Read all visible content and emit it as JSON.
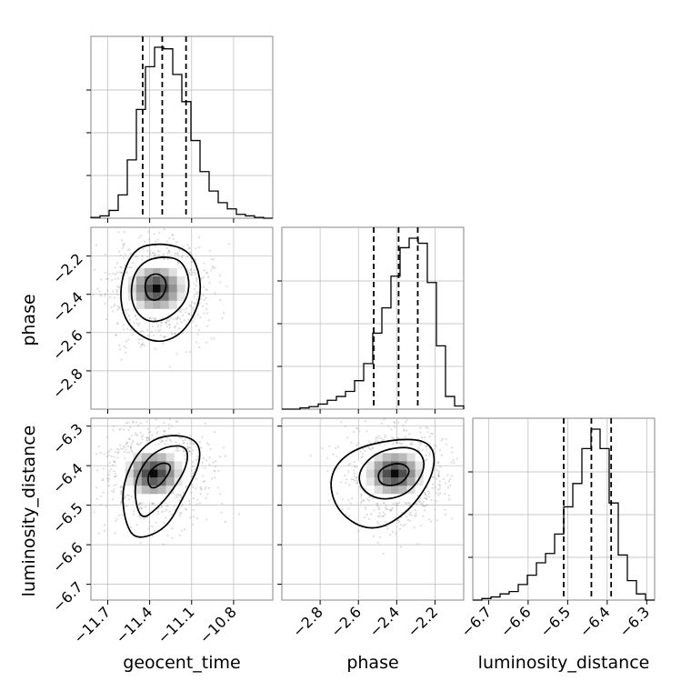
{
  "chart_data": {
    "type": "corner",
    "parameters": [
      "geocent_time",
      "phase",
      "luminosity_distance"
    ],
    "axes": {
      "geocent_time": {
        "xlabel": "geocent_time",
        "range": [
          -11.82,
          -10.52
        ],
        "ticks": [
          -11.7,
          -11.4,
          -11.1,
          -10.8
        ],
        "tick_labels": [
          "−11.7",
          "−11.4",
          "−11.1",
          "−10.8"
        ],
        "quantiles": [
          -11.45,
          -11.31,
          -11.14
        ],
        "hist_edges_start": -11.82,
        "hist_bin_width": 0.065,
        "hist_counts": [
          1,
          3,
          10,
          30,
          75,
          140,
          195,
          220,
          218,
          185,
          150,
          100,
          60,
          35,
          20,
          12,
          5,
          3,
          1,
          0
        ]
      },
      "phase": {
        "ylabel": "phase",
        "xlabel": "phase",
        "range": [
          -3.0,
          -2.05
        ],
        "ticks": [
          -2.8,
          -2.6,
          -2.4,
          -2.2
        ],
        "tick_labels": [
          "−2.8",
          "−2.6",
          "−2.4",
          "−2.2"
        ],
        "quantiles": [
          -2.52,
          -2.39,
          -2.29
        ],
        "hist_edges_start": -3.0,
        "hist_bin_width": 0.0475,
        "hist_counts": [
          0,
          0,
          2,
          4,
          8,
          14,
          20,
          28,
          45,
          72,
          120,
          160,
          210,
          255,
          270,
          262,
          200,
          100,
          20,
          5
        ]
      },
      "luminosity_distance": {
        "ylabel": "luminosity_distance",
        "xlabel": "luminosity_distance",
        "range": [
          -6.74,
          -6.28
        ],
        "ticks": [
          -6.7,
          -6.6,
          -6.5,
          -6.4,
          -6.3
        ],
        "tick_labels": [
          "−6.7",
          "−6.6",
          "−6.5",
          "−6.4",
          "−6.3"
        ],
        "quantiles": [
          -6.51,
          -6.44,
          -6.39
        ],
        "hist_edges_start": -6.74,
        "hist_bin_width": 0.023,
        "hist_counts": [
          0,
          2,
          4,
          8,
          11,
          20,
          32,
          48,
          60,
          85,
          120,
          150,
          195,
          220,
          195,
          125,
          58,
          25,
          8,
          0
        ]
      }
    },
    "pairs": [
      {
        "x": "geocent_time",
        "y": "phase",
        "peak": [
          -11.35,
          -2.37
        ],
        "contours": [
          [
            [
              -11.45,
              -2.23
            ],
            [
              -11.31,
              -2.2
            ],
            [
              -11.17,
              -2.22
            ],
            [
              -11.11,
              -2.33
            ],
            [
              -11.14,
              -2.44
            ],
            [
              -11.27,
              -2.53
            ],
            [
              -11.42,
              -2.55
            ],
            [
              -11.53,
              -2.46
            ],
            [
              -11.53,
              -2.32
            ]
          ],
          [
            [
              -11.52,
              -2.16
            ],
            [
              -11.32,
              -2.13
            ],
            [
              -11.11,
              -2.17
            ],
            [
              -11.03,
              -2.32
            ],
            [
              -11.05,
              -2.47
            ],
            [
              -11.18,
              -2.62
            ],
            [
              -11.38,
              -2.66
            ],
            [
              -11.58,
              -2.55
            ],
            [
              -11.62,
              -2.36
            ]
          ],
          [
            [
              -11.41,
              -2.3
            ],
            [
              -11.32,
              -2.29
            ],
            [
              -11.27,
              -2.35
            ],
            [
              -11.32,
              -2.43
            ],
            [
              -11.41,
              -2.43
            ],
            [
              -11.44,
              -2.36
            ]
          ]
        ]
      },
      {
        "x": "geocent_time",
        "y": "luminosity_distance",
        "peak": [
          -11.37,
          -6.42
        ],
        "contours": [
          [
            [
              -11.52,
              -6.45
            ],
            [
              -11.42,
              -6.38
            ],
            [
              -11.28,
              -6.35
            ],
            [
              -11.13,
              -6.35
            ],
            [
              -11.13,
              -6.4
            ],
            [
              -11.23,
              -6.46
            ],
            [
              -11.35,
              -6.51
            ],
            [
              -11.47,
              -6.54
            ]
          ],
          [
            [
              -11.6,
              -6.45
            ],
            [
              -11.48,
              -6.36
            ],
            [
              -11.3,
              -6.32
            ],
            [
              -11.06,
              -6.33
            ],
            [
              -11.03,
              -6.39
            ],
            [
              -11.16,
              -6.48
            ],
            [
              -11.28,
              -6.56
            ],
            [
              -11.5,
              -6.59
            ],
            [
              -11.58,
              -6.54
            ]
          ],
          [
            [
              -11.42,
              -6.42
            ],
            [
              -11.32,
              -6.39
            ],
            [
              -11.23,
              -6.4
            ],
            [
              -11.32,
              -6.45
            ],
            [
              -11.4,
              -6.46
            ]
          ]
        ]
      },
      {
        "x": "phase",
        "y": "luminosity_distance",
        "peak": [
          -2.41,
          -6.42
        ],
        "contours": [
          [
            [
              -2.6,
              -6.41
            ],
            [
              -2.49,
              -6.36
            ],
            [
              -2.3,
              -6.35
            ],
            [
              -2.24,
              -6.4
            ],
            [
              -2.33,
              -6.47
            ],
            [
              -2.48,
              -6.49
            ],
            [
              -2.59,
              -6.46
            ]
          ],
          [
            [
              -2.76,
              -6.43
            ],
            [
              -2.65,
              -6.36
            ],
            [
              -2.39,
              -6.33
            ],
            [
              -2.21,
              -6.34
            ],
            [
              -2.2,
              -6.42
            ],
            [
              -2.34,
              -6.52
            ],
            [
              -2.53,
              -6.57
            ],
            [
              -2.71,
              -6.52
            ]
          ],
          [
            [
              -2.5,
              -6.41
            ],
            [
              -2.39,
              -6.39
            ],
            [
              -2.32,
              -6.41
            ],
            [
              -2.38,
              -6.45
            ],
            [
              -2.49,
              -6.45
            ]
          ]
        ]
      }
    ],
    "grid": true
  }
}
